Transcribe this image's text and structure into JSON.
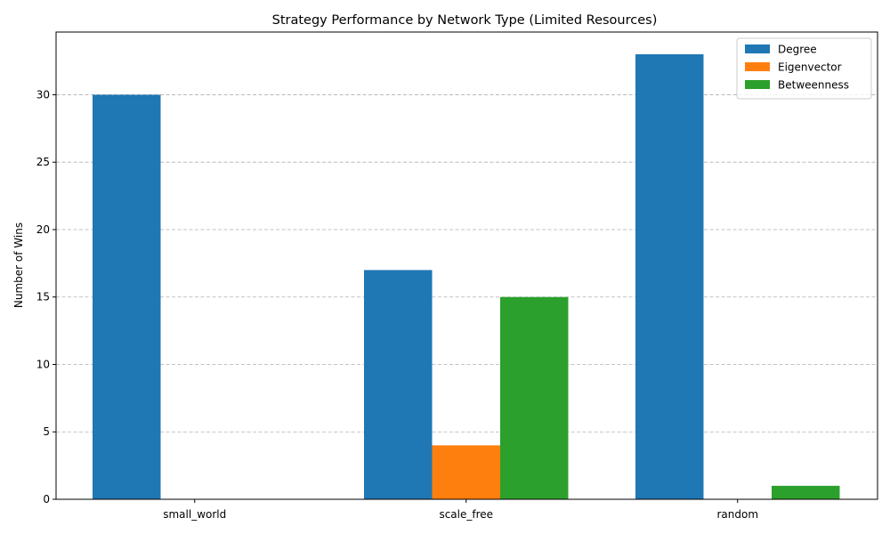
{
  "chart_data": {
    "type": "bar",
    "title": "Strategy Performance by Network Type (Limited Resources)",
    "xlabel": "",
    "ylabel": "Number of Wins",
    "categories": [
      "small_world",
      "scale_free",
      "random"
    ],
    "series": [
      {
        "name": "Degree",
        "values": [
          30,
          17,
          33
        ],
        "color": "#1f77b4"
      },
      {
        "name": "Eigenvector",
        "values": [
          0,
          4,
          0
        ],
        "color": "#ff7f0e"
      },
      {
        "name": "Betweenness",
        "values": [
          0,
          15,
          1
        ],
        "color": "#2ca02c"
      }
    ],
    "ylim": [
      0,
      34.65
    ],
    "yticks": [
      0,
      5,
      10,
      15,
      20,
      25,
      30
    ],
    "grid": "y-dashed",
    "legend_position": "top-right"
  }
}
